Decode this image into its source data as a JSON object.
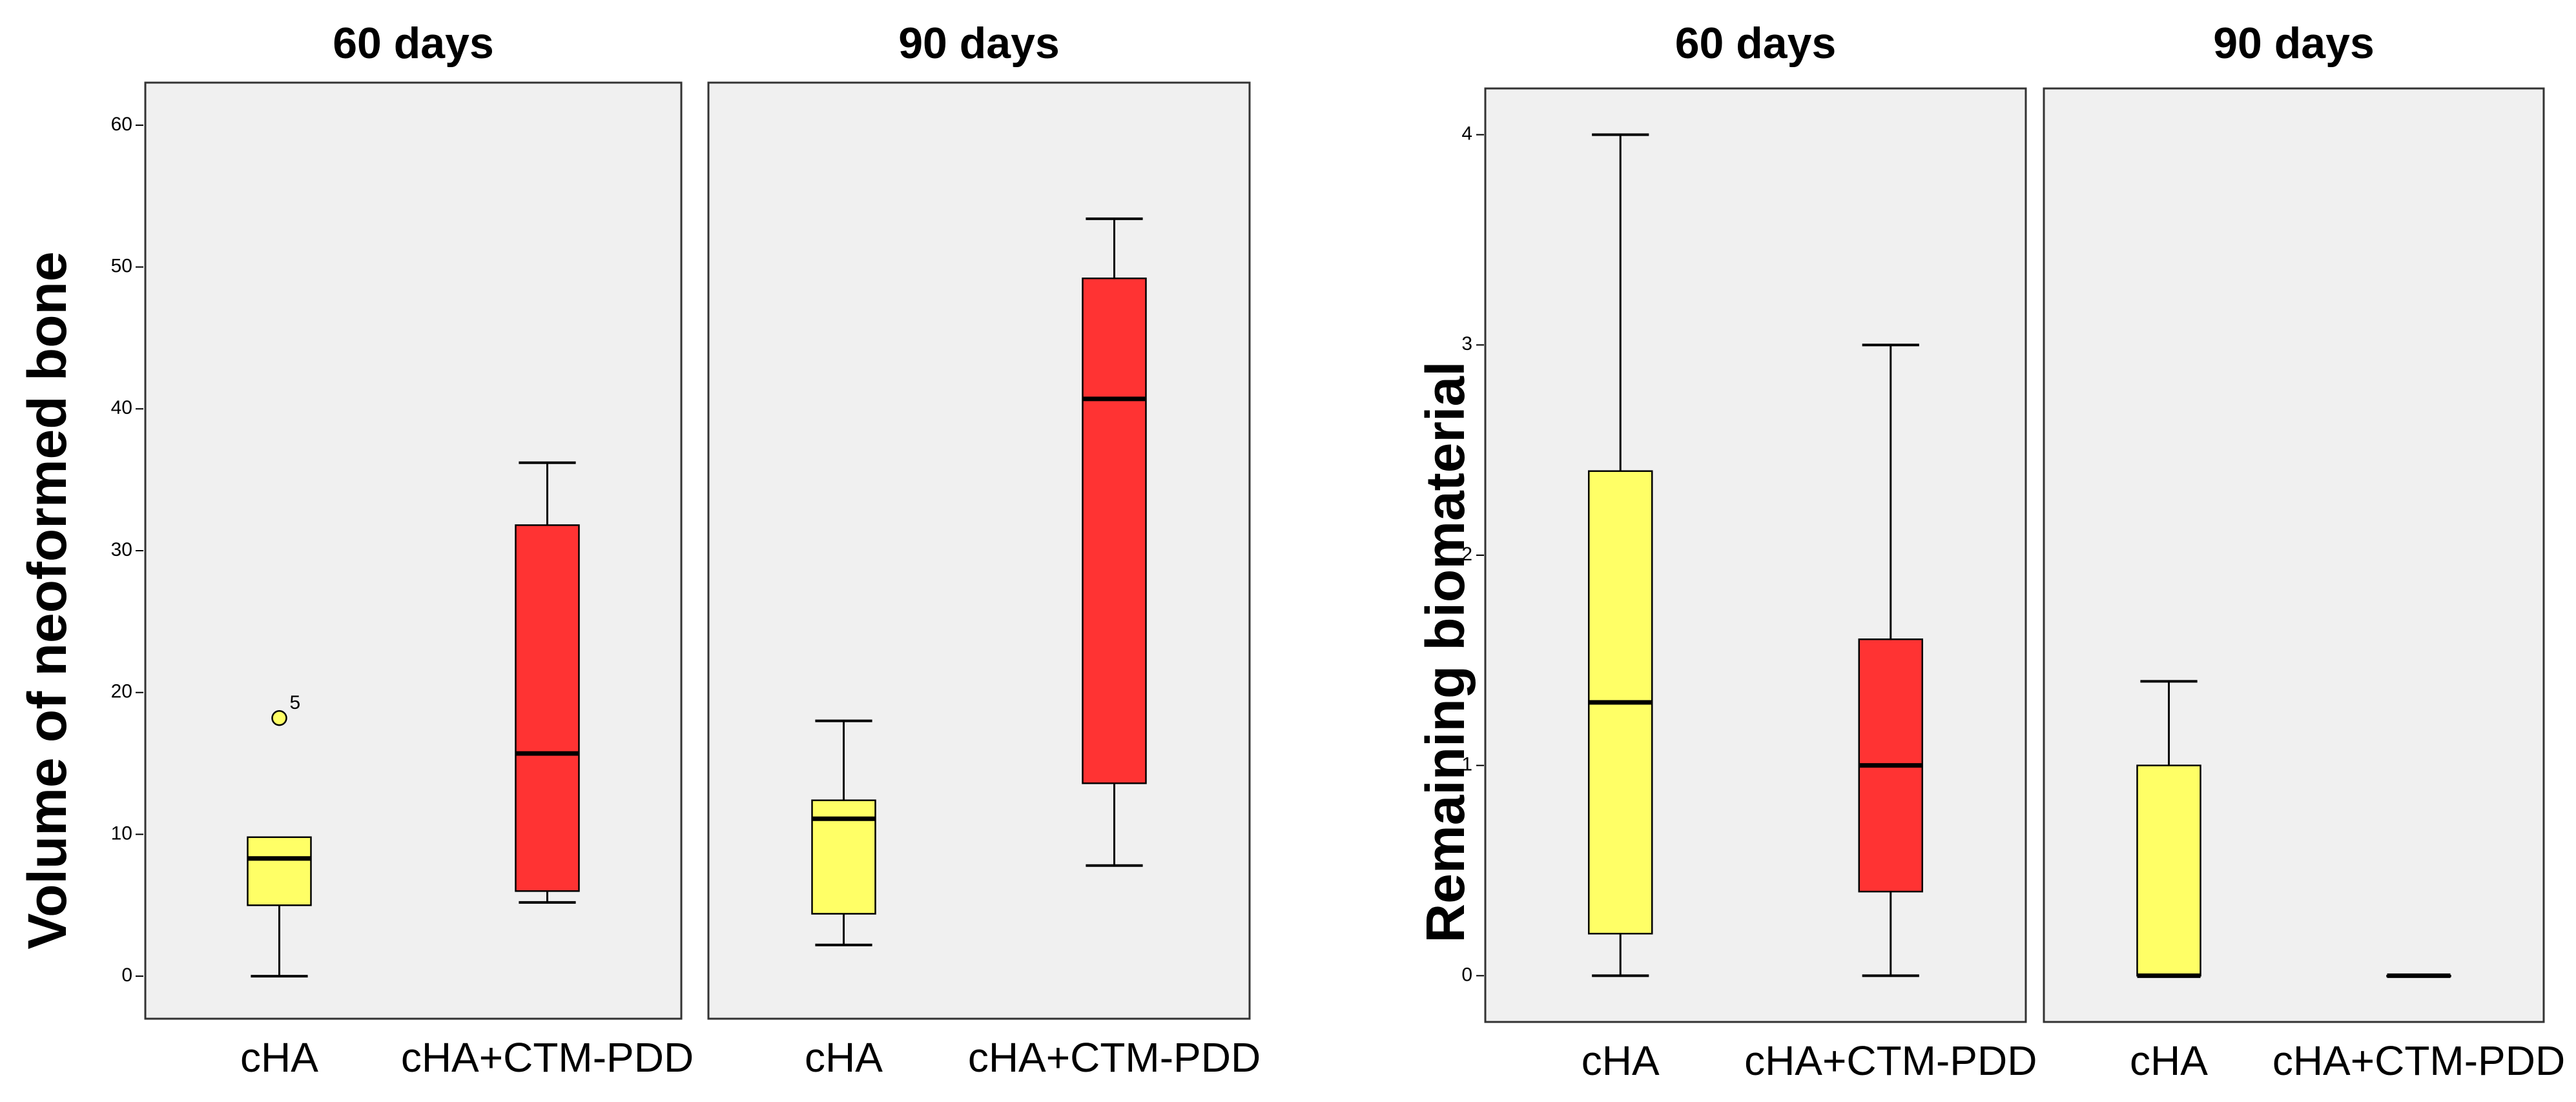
{
  "colors": {
    "cHA": "#FFFF66",
    "cHA+CTM-PDD": "#FF3333",
    "panel_bg": "#F0F0F0",
    "frame": "#333333"
  },
  "chart_data": [
    {
      "type": "boxplot",
      "ylabel": "Volume of neoformed bone",
      "ylim": [
        -3,
        63
      ],
      "yticks": [
        0,
        10,
        20,
        30,
        40,
        50,
        60
      ],
      "facets": [
        {
          "title": "60 days",
          "categories": [
            "cHA",
            "cHA+CTM-PDD"
          ],
          "boxes": [
            {
              "group": "cHA",
              "min": 0,
              "q1": 5,
              "median": 8.3,
              "q3": 9.8,
              "max": 9.8,
              "outliers": [
                {
                  "value": 18.2,
                  "label": "5"
                }
              ]
            },
            {
              "group": "cHA+CTM-PDD",
              "min": 5.2,
              "q1": 6,
              "median": 15.7,
              "q3": 31.8,
              "max": 36.2,
              "outliers": []
            }
          ]
        },
        {
          "title": "90 days",
          "categories": [
            "cHA",
            "cHA+CTM-PDD"
          ],
          "boxes": [
            {
              "group": "cHA",
              "min": 2.2,
              "q1": 4.4,
              "median": 11.1,
              "q3": 12.4,
              "max": 18,
              "outliers": []
            },
            {
              "group": "cHA+CTM-PDD",
              "min": 7.8,
              "q1": 13.6,
              "median": 40.7,
              "q3": 49.2,
              "max": 53.4,
              "outliers": []
            }
          ]
        }
      ]
    },
    {
      "type": "boxplot",
      "ylabel": "Remaining biomaterial",
      "ylim": [
        -0.22,
        4.22
      ],
      "yticks": [
        0,
        1,
        2,
        3,
        4
      ],
      "facets": [
        {
          "title": "60 days",
          "categories": [
            "cHA",
            "cHA+CTM-PDD"
          ],
          "boxes": [
            {
              "group": "cHA",
              "min": 0,
              "q1": 0.2,
              "median": 1.3,
              "q3": 2.4,
              "max": 4,
              "outliers": []
            },
            {
              "group": "cHA+CTM-PDD",
              "min": 0,
              "q1": 0.4,
              "median": 1,
              "q3": 1.6,
              "max": 3,
              "outliers": []
            }
          ]
        },
        {
          "title": "90 days",
          "categories": [
            "cHA",
            "cHA+CTM-PDD"
          ],
          "boxes": [
            {
              "group": "cHA",
              "min": 0,
              "q1": 0,
              "median": 0,
              "q3": 1,
              "max": 1.4,
              "outliers": []
            },
            {
              "group": "cHA+CTM-PDD",
              "min": 0,
              "q1": 0,
              "median": 0,
              "q3": 0,
              "max": 0,
              "outliers": []
            }
          ]
        }
      ]
    }
  ]
}
